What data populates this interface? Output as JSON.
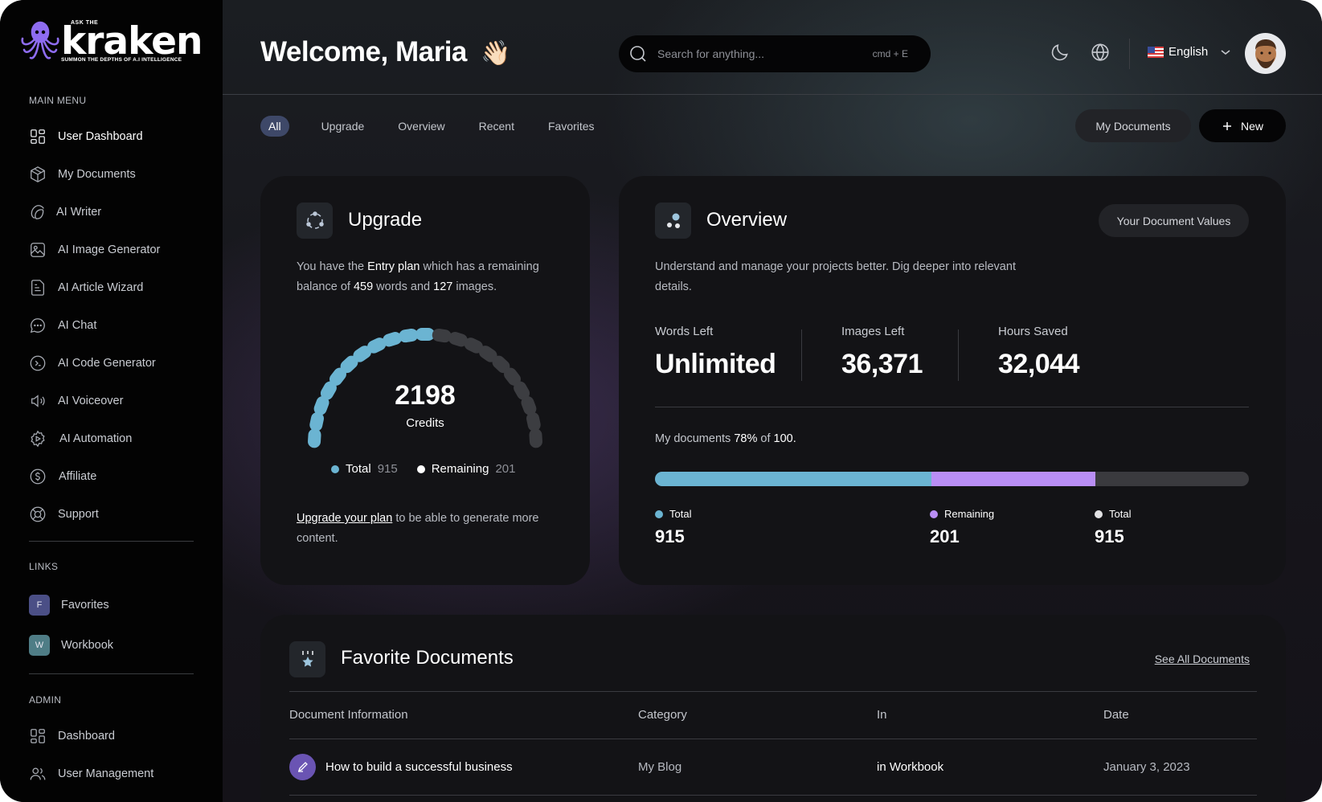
{
  "brand": {
    "ask": "ASK THE",
    "name": "kraken",
    "tagline": "SUMMON THE DEPTHS OF A.I INTELLIGENCE"
  },
  "sidebar": {
    "main_menu_title": "MAIN MENU",
    "items": [
      {
        "label": "User Dashboard",
        "icon": "dashboard-icon"
      },
      {
        "label": "My Documents",
        "icon": "box-icon"
      },
      {
        "label": "AI Writer",
        "icon": "writer-icon"
      },
      {
        "label": "AI Image Generator",
        "icon": "image-icon"
      },
      {
        "label": "AI Article Wizard",
        "icon": "article-icon"
      },
      {
        "label": "AI Chat",
        "icon": "chat-icon"
      },
      {
        "label": "AI Code Generator",
        "icon": "code-icon"
      },
      {
        "label": "AI Voiceover",
        "icon": "speaker-icon"
      },
      {
        "label": "AI Automation",
        "icon": "automation-icon"
      },
      {
        "label": "Affiliate",
        "icon": "dollar-icon"
      },
      {
        "label": "Support",
        "icon": "lifebuoy-icon"
      }
    ],
    "links_title": "LINKS",
    "links": [
      {
        "letter": "F",
        "label": "Favorites",
        "color": "#4b4f86"
      },
      {
        "letter": "W",
        "label": "Workbook",
        "color": "#4f7d86"
      }
    ],
    "admin_title": "ADMIN",
    "admin_items": [
      {
        "label": "Dashboard",
        "icon": "dashboard-icon"
      },
      {
        "label": "User Management",
        "icon": "users-icon"
      }
    ]
  },
  "header": {
    "welcome": "Welcome, Maria",
    "wave": "👋🏻",
    "search_placeholder": "Search for anything...",
    "search_shortcut": "cmd + E",
    "language": "English"
  },
  "tabs": [
    "All",
    "Upgrade",
    "Overview",
    "Recent",
    "Favorites"
  ],
  "actions": {
    "my_documents": "My Documents",
    "new": "New"
  },
  "upgrade": {
    "title": "Upgrade",
    "text_1": "You have the ",
    "plan": "Entry plan",
    "text_2": " which has a remaining balance of ",
    "words": "459",
    "text_3": " words and ",
    "images": "127",
    "text_4": " images.",
    "credits_value": "2198",
    "credits_label": "Credits",
    "gauge_filled_fraction": 0.5,
    "legend_total_label": "Total",
    "legend_total_value": "915",
    "legend_remaining_label": "Remaining",
    "legend_remaining_value": "201",
    "upgrade_link": "Upgrade your plan",
    "upgrade_text": " to be able to generate more content.",
    "colors": {
      "filled": "#6bb4d2",
      "empty": "#3c3d41"
    }
  },
  "overview": {
    "title": "Overview",
    "button": "Your Document Values",
    "description": "Understand and manage your projects better. Dig deeper into relevant details.",
    "stats": [
      {
        "label": "Words Left",
        "value": "Unlimited"
      },
      {
        "label": "Images Left",
        "value": "36,371"
      },
      {
        "label": "Hours Saved",
        "value": "32,044"
      }
    ],
    "docs_text_1": "My documents ",
    "docs_percent": "78%",
    "docs_text_2": " of ",
    "docs_total": "100.",
    "bar": {
      "total_fraction": 0.465,
      "remaining_fraction": 0.277,
      "total_color": "#6bb4d2",
      "remaining_color": "#b98ef5",
      "rest_color": "#3a3a3e"
    },
    "legend": [
      {
        "label": "Total",
        "value": "915",
        "color": "#6bb4d2"
      },
      {
        "label": "Remaining",
        "value": "201",
        "color": "#b98ef5"
      },
      {
        "label": "Total",
        "value": "915",
        "color": "#e2e2e4"
      }
    ]
  },
  "favorites": {
    "title": "Favorite Documents",
    "see_all": "See All Documents",
    "columns": [
      "Document Information",
      "Category",
      "In",
      "Date"
    ],
    "rows": [
      {
        "name": "How to build a successful business",
        "category": "My Blog",
        "in": "in Workbook",
        "date": "January 3, 2023"
      }
    ]
  }
}
